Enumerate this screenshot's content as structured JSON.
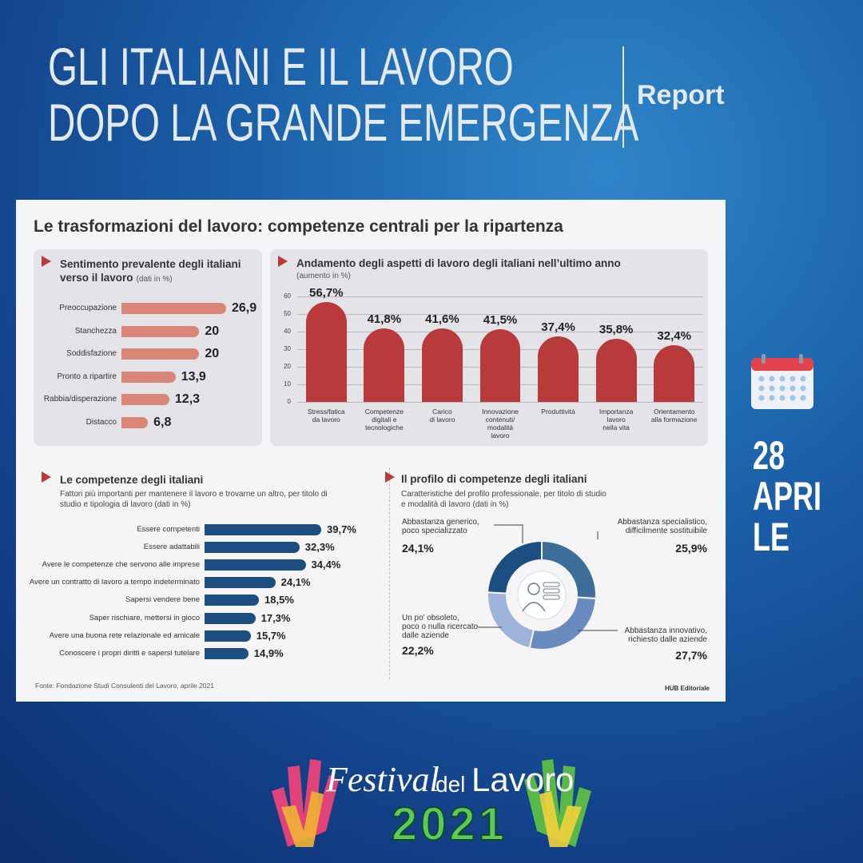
{
  "header": {
    "title_lines": [
      "GLI ITALIANI E IL LAVORO",
      "DOPO LA GRANDE EMERGENZA"
    ],
    "tag": "Report"
  },
  "panel_title": "Le trasformazioni del lavoro: competenze centrali per la ripartenza",
  "chart_data": [
    {
      "type": "hbar",
      "title": "Sentimento prevalente degli italiani verso il lavoro",
      "subtitle": "(dati in %)",
      "categories": [
        "Preoccupazione",
        "Stanchezza",
        "Soddisfazione",
        "Pronto a ripartire",
        "Rabbia/disperazione",
        "Distacco"
      ],
      "values": [
        26.9,
        20,
        20,
        13.9,
        12.3,
        6.8
      ],
      "value_labels": [
        "26,9",
        "20",
        "20",
        "13,9",
        "12,3",
        "6,8"
      ],
      "color": "#d98577"
    },
    {
      "type": "bar",
      "title": "Andamento degli aspetti di lavoro degli italiani nell’ultimo anno",
      "subtitle": "(aumento in %)",
      "categories": [
        "Stress/fatica\nda lavoro",
        "Competenze\ndigitali e\ntecnologiche",
        "Carico\ndi lavoro",
        "Innovazione\ncontenuti/\nmodalità\nlavoro",
        "Produttività",
        "Importanza\nlavoro\nnella vita",
        "Orientamento\nalla formazione"
      ],
      "values": [
        56.7,
        41.8,
        41.6,
        41.5,
        37.4,
        35.8,
        32.4
      ],
      "value_labels": [
        "56,7%",
        "41,8%",
        "41,6%",
        "41,5%",
        "37,4%",
        "35,8%",
        "32,4%"
      ],
      "ylim": [
        0,
        60
      ],
      "yticks": [
        0,
        10,
        20,
        30,
        40,
        50,
        60
      ],
      "grid": true,
      "color": "#b83a3a"
    },
    {
      "type": "hbar",
      "title": "Le competenze degli italiani",
      "subtitle": "Fattori più importanti per mantenere il lavoro e trovarne un altro, per titolo di studio e tipologia di lavoro (dati in %)",
      "categories": [
        "Essere competenti",
        "Essere adattabili",
        "Avere le competenze che servono alle imprese",
        "Avere un contratto di lavoro a tempo indeterminato",
        "Sapersi vendere bene",
        "Saper rischiare, mettersi in gioco",
        "Avere una buona rete relazionale ed amicale",
        "Conoscere i propri diritti e sapersi tutelare"
      ],
      "values": [
        39.7,
        32.3,
        34.4,
        24.1,
        18.5,
        17.3,
        15.7,
        14.9
      ],
      "value_labels": [
        "39,7%",
        "32,3%",
        "34,4%",
        "24,1%",
        "18,5%",
        "17,3%",
        "15,7%",
        "14,9%"
      ],
      "color": "#1d4e82"
    },
    {
      "type": "donut",
      "title": "Il profilo di competenze degli italiani",
      "subtitle": "Caratteristiche del profilo professionale, per titolo di studio e modalità di lavoro (dati in %)",
      "categories": [
        "Abbastanza specialistico,\ndifficilmente sostituibile",
        "Abbastanza innovativo,\nrichiesto dalle aziende",
        "Un po’ obsoleto,\npoco o nulla ricercato\ndalle aziende",
        "Abbastanza generico,\npoco specializzato"
      ],
      "values": [
        25.9,
        27.7,
        22.2,
        24.1
      ],
      "value_labels": [
        "25,9%",
        "27,7%",
        "22,2%",
        "24,1%"
      ],
      "colors": [
        "#3d6e99",
        "#6a8bbf",
        "#9db3d9",
        "#1d4e82"
      ]
    }
  ],
  "source": "Fonte: Fondazione Studi Consulenti del Lavoro, aprile 2021",
  "credit": "HUB Editoriale",
  "date_lines": [
    "28",
    "APRI",
    "LE"
  ],
  "logo": {
    "word1": "Festival",
    "word2": "del",
    "word3": "Lavoro",
    "year": "2021"
  }
}
